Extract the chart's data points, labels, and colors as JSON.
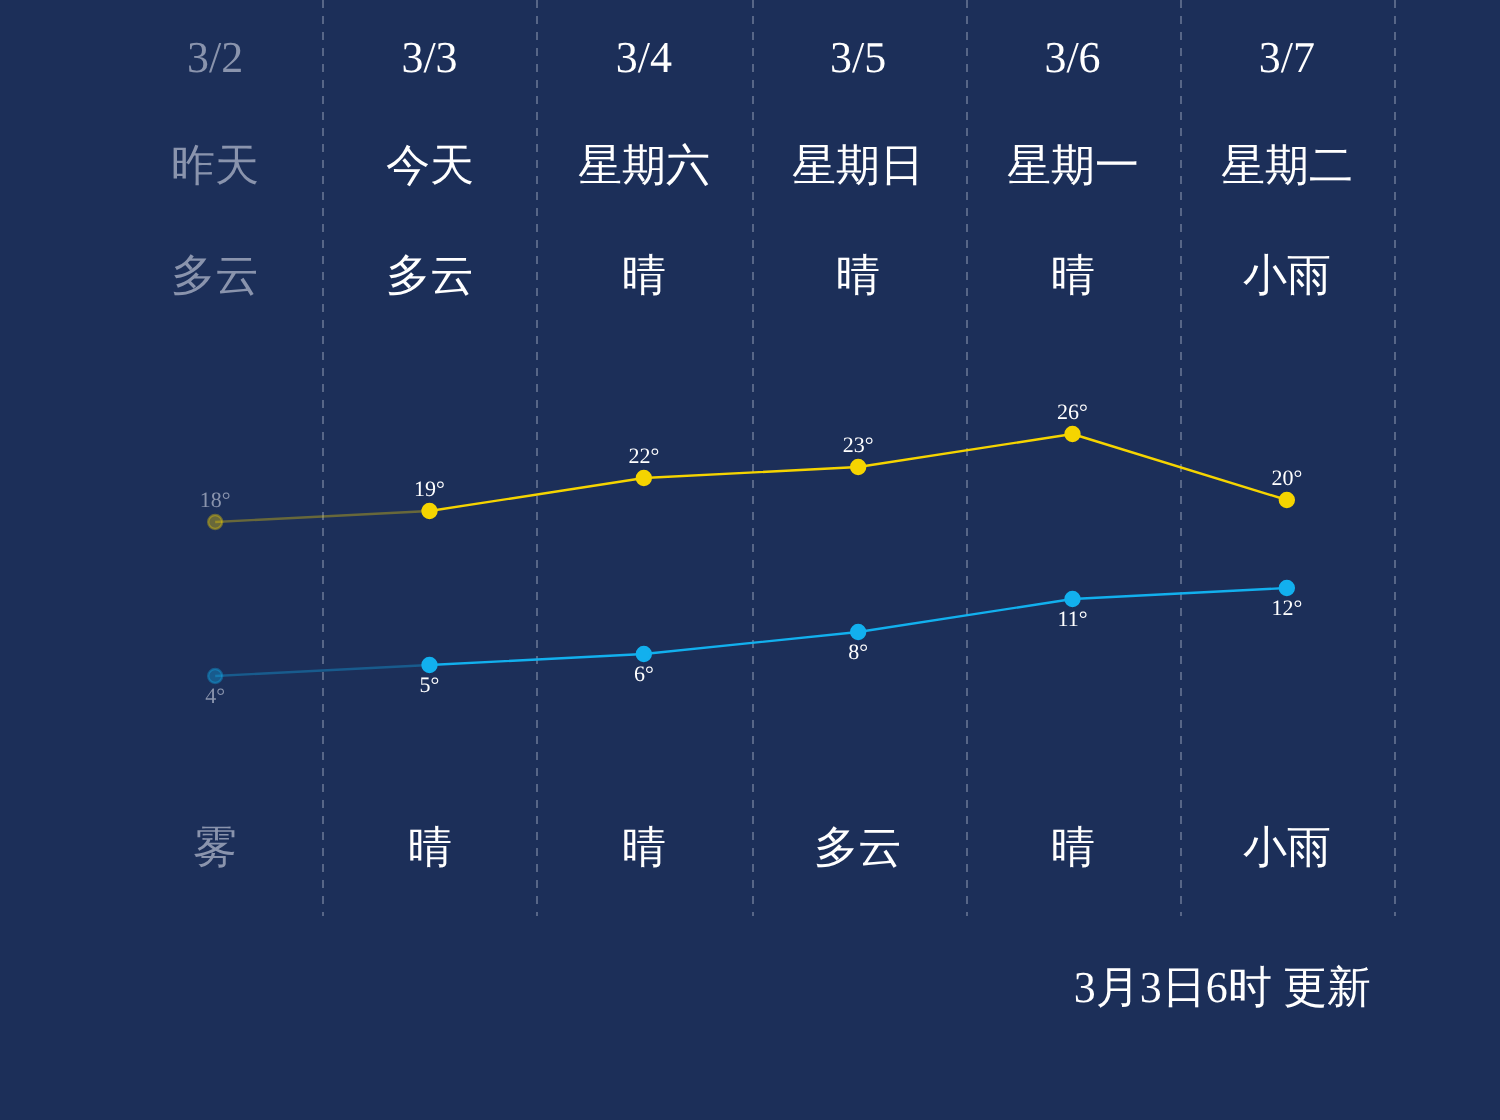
{
  "chart_data": {
    "type": "line",
    "categories": [
      "3/2",
      "3/3",
      "3/4",
      "3/5",
      "3/6",
      "3/7"
    ],
    "series": [
      {
        "color": "#f5d400",
        "values": [
          18,
          19,
          22,
          23,
          26,
          20
        ],
        "value_labels": [
          "18°",
          "19°",
          "22°",
          "23°",
          "26°",
          "20°"
        ]
      },
      {
        "color": "#12b0ee",
        "values": [
          4,
          5,
          6,
          8,
          11,
          12
        ],
        "value_labels": [
          "4°",
          "5°",
          "6°",
          "8°",
          "11°",
          "12°"
        ]
      }
    ],
    "annotations": [
      "昨天",
      "今天",
      "星期六",
      "星期日",
      "星期一",
      "星期二",
      "多云",
      "多云",
      "晴",
      "晴",
      "晴",
      "小雨",
      "雾",
      "晴",
      "晴",
      "多云",
      "晴",
      "小雨",
      "3月3日6时 更新"
    ],
    "marker": "circle",
    "grid": "x",
    "legend": false,
    "tick_labels": "x"
  }
}
